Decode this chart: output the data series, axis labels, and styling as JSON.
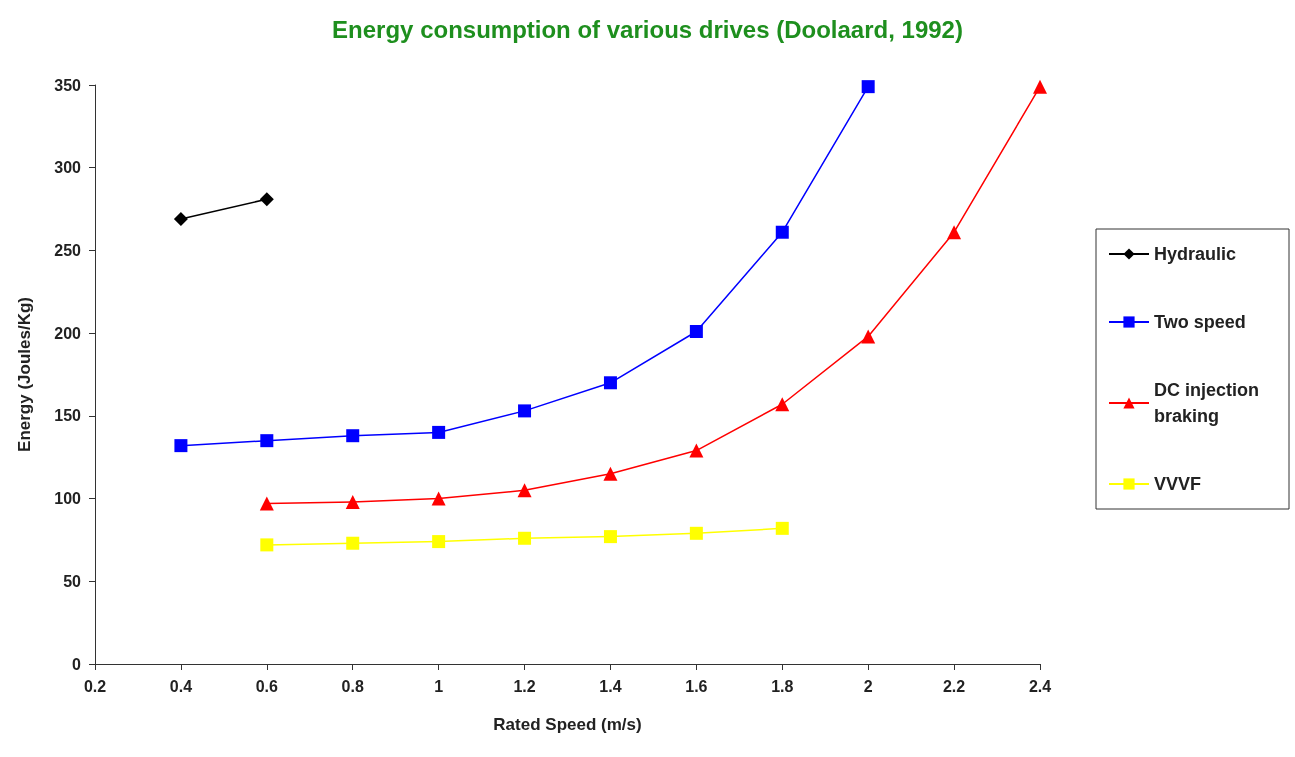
{
  "chart_data": {
    "type": "line",
    "title": "Energy consumption of various drives (Doolaard, 1992)",
    "xlabel": "Rated Speed (m/s)",
    "ylabel": "Energy (Joules/Kg)",
    "xlim": [
      0.2,
      2.4
    ],
    "xticks": [
      0.2,
      0.4,
      0.6,
      0.8,
      1,
      1.2,
      1.4,
      1.6,
      1.8,
      2,
      2.2,
      2.4
    ],
    "ylim": [
      0,
      350
    ],
    "yticks": [
      0,
      50,
      100,
      150,
      200,
      250,
      300,
      350
    ],
    "grid": false,
    "legend": "right",
    "line_style": "solid",
    "series": [
      {
        "name": "Hydraulic",
        "color": "#000000",
        "marker": "diamond",
        "x": [
          0.4,
          0.6
        ],
        "values": [
          269,
          281
        ]
      },
      {
        "name": "Two speed",
        "color": "#0000ff",
        "marker": "square",
        "x": [
          0.4,
          0.6,
          0.8,
          1,
          1.2,
          1.4,
          1.6,
          1.8,
          2
        ],
        "values": [
          132,
          135,
          138,
          140,
          153,
          170,
          201,
          261,
          349
        ]
      },
      {
        "name": "DC injection braking",
        "color": "#ff0000",
        "marker": "triangle",
        "x": [
          0.6,
          0.8,
          1,
          1.2,
          1.4,
          1.6,
          1.8,
          2,
          2.2,
          2.4
        ],
        "values": [
          97,
          98,
          100,
          105,
          115,
          129,
          157,
          198,
          261,
          349
        ]
      },
      {
        "name": "VVVF",
        "color": "#ffff00",
        "marker": "square",
        "x": [
          0.6,
          0.8,
          1,
          1.2,
          1.4,
          1.6,
          1.8
        ],
        "values": [
          72,
          73,
          74,
          76,
          77,
          79,
          82
        ]
      }
    ]
  }
}
